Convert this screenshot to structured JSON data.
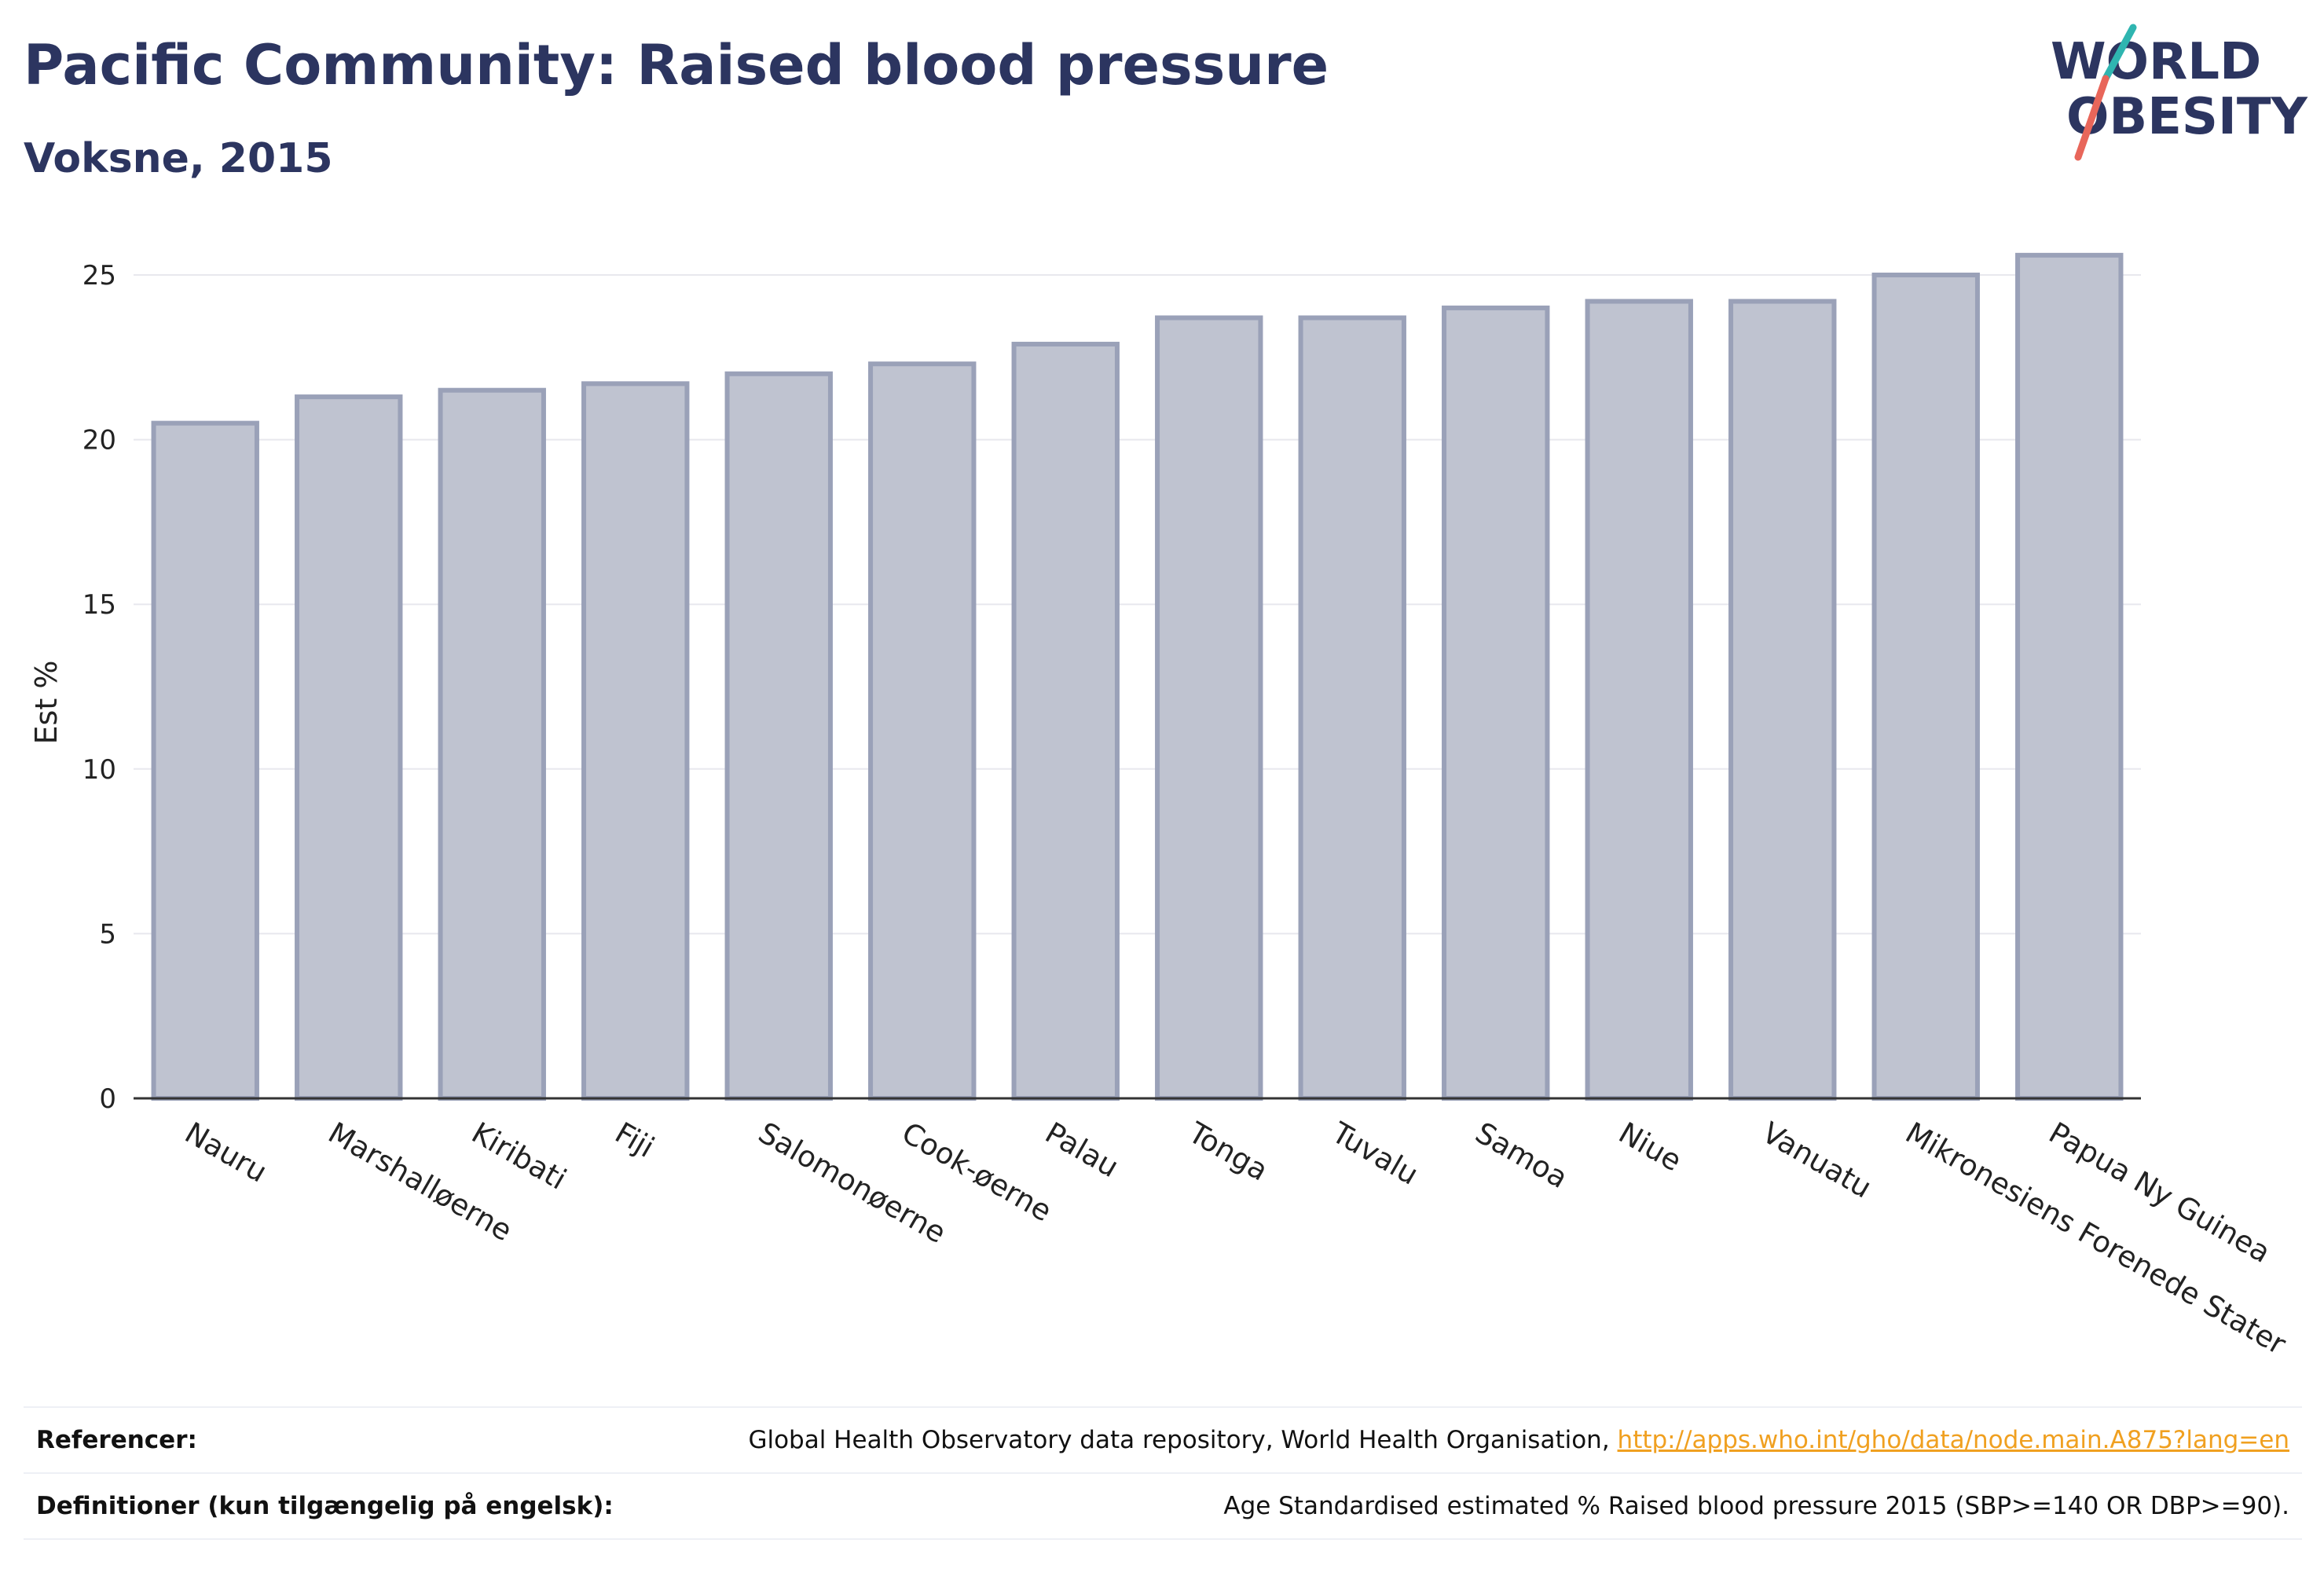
{
  "header": {
    "title": "Pacific Community: Raised blood pressure",
    "subtitle": "Voksne, 2015"
  },
  "logo": {
    "line1": "WORLD",
    "line2": "OBESITY"
  },
  "chart_data": {
    "type": "bar",
    "ylabel": "Est %",
    "ylim": [
      0,
      26
    ],
    "yticks": [
      0,
      5,
      10,
      15,
      20,
      25
    ],
    "grid": true,
    "categories": [
      "Nauru",
      "Marshalløerne",
      "Kiribati",
      "Fiji",
      "Salomonøerne",
      "Cook-øerne",
      "Palau",
      "Tonga",
      "Tuvalu",
      "Samoa",
      "Niue",
      "Vanuatu",
      "Mikronesiens Forenede Stater",
      "Papua Ny Guinea"
    ],
    "values": [
      20.5,
      21.3,
      21.5,
      21.7,
      22.0,
      22.3,
      22.9,
      23.7,
      23.7,
      24.0,
      24.2,
      24.2,
      25.0,
      25.6
    ],
    "colors": {
      "bar_fill": "#bfc3d0",
      "bar_stroke": "#9aa1b8",
      "axis": "#333333",
      "grid": "#e8e8ee"
    }
  },
  "references": {
    "ref_label": "Referencer:",
    "ref_text": "Global Health Observatory data repository, World Health Organisation, ",
    "ref_link": "http://apps.who.int/gho/data/node.main.A875?lang=en",
    "def_label": "Definitioner (kun tilgængelig på engelsk):",
    "def_text": "Age Standardised estimated % Raised blood pressure 2015 (SBP>=140 OR DBP>=90)."
  }
}
